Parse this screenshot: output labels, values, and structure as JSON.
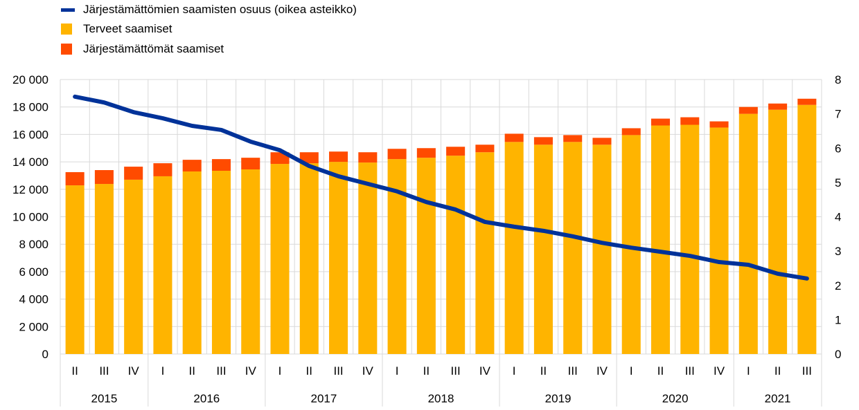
{
  "chart_data": {
    "type": "bar",
    "stacked": true,
    "legend": [
      {
        "label": "Järjestämättömien saamisten osuus (oikea asteikko)",
        "color": "#003299",
        "kind": "line"
      },
      {
        "label": "Terveet saamiset",
        "color": "#FFB400",
        "kind": "bar"
      },
      {
        "label": "Järjestämättömät saamiset",
        "color": "#FF4B00",
        "kind": "bar"
      }
    ],
    "legend_position": "top-left",
    "categories": [
      "II",
      "III",
      "IV",
      "I",
      "II",
      "III",
      "IV",
      "I",
      "II",
      "III",
      "IV",
      "I",
      "II",
      "III",
      "IV",
      "I",
      "II",
      "III",
      "IV",
      "I",
      "II",
      "III",
      "IV",
      "I",
      "II",
      "III"
    ],
    "years": [
      {
        "label": "2015",
        "count": 3
      },
      {
        "label": "2016",
        "count": 4
      },
      {
        "label": "2017",
        "count": 4
      },
      {
        "label": "2018",
        "count": 4
      },
      {
        "label": "2019",
        "count": 4
      },
      {
        "label": "2020",
        "count": 4
      },
      {
        "label": "2021",
        "count": 3
      }
    ],
    "series": [
      {
        "name": "Terveet saamiset",
        "axis": "left",
        "values": [
          12290,
          12390,
          12700,
          12950,
          13300,
          13350,
          13450,
          13850,
          13900,
          14000,
          13950,
          14200,
          14300,
          14450,
          14700,
          15450,
          15250,
          15450,
          15250,
          15950,
          16650,
          16700,
          16500,
          17500,
          17800,
          18150
        ]
      },
      {
        "name": "Järjestämättömät saamiset",
        "axis": "left",
        "values": [
          960,
          1010,
          950,
          950,
          850,
          850,
          850,
          850,
          800,
          750,
          750,
          750,
          700,
          650,
          550,
          600,
          550,
          500,
          500,
          500,
          500,
          550,
          450,
          500,
          450,
          450
        ]
      },
      {
        "name": "Järjestämättömien saamisten osuus (oikea asteikko)",
        "axis": "right",
        "type": "line",
        "values": [
          7.5,
          7.33,
          7.05,
          6.87,
          6.65,
          6.53,
          6.19,
          5.94,
          5.48,
          5.18,
          4.96,
          4.74,
          4.43,
          4.21,
          3.85,
          3.71,
          3.59,
          3.43,
          3.24,
          3.1,
          2.98,
          2.86,
          2.68,
          2.6,
          2.34,
          2.2
        ]
      }
    ],
    "ylim_left": [
      0,
      20000
    ],
    "yticks_left": [
      "0",
      "2 000",
      "4 000",
      "6 000",
      "8 000",
      "10 000",
      "12 000",
      "14 000",
      "16 000",
      "18 000",
      "20 000"
    ],
    "ylim_right": [
      0,
      8
    ],
    "yticks_right": [
      "0",
      "1",
      "2",
      "3",
      "4",
      "5",
      "6",
      "7",
      "8"
    ],
    "grid": true
  }
}
